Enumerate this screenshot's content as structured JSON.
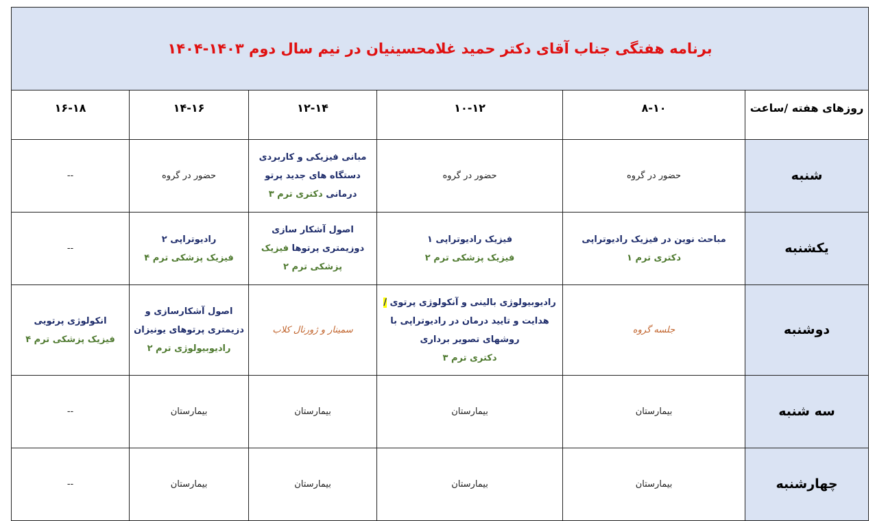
{
  "title": "برنامه هفتگی جناب آقای دکتر حمید غلامحسینیان در نیم سال دوم ۱۴۰۳-۱۴۰۴",
  "colors": {
    "title": "#e01010",
    "navy": "#1f2d6b",
    "green": "#4f7a30",
    "orange": "#c0622a",
    "plain": "#222222",
    "header_bg": "#dae3f3"
  },
  "header": [
    "روزهای هفته /ساعت",
    "۸-۱۰",
    "۱۰-۱۲",
    "۱۲-۱۴",
    "۱۴-۱۶",
    "۱۶-۱۸"
  ],
  "rows": [
    {
      "day": "شنبه",
      "cells": [
        [
          [
            {
              "t": "حضور در گروه",
              "c": "plain"
            }
          ]
        ],
        [
          [
            {
              "t": "حضور در گروه",
              "c": "plain"
            }
          ]
        ],
        [
          [
            {
              "t": "مبانی فیزیکی و کاربردی",
              "c": "navy",
              "b": 1
            }
          ],
          [
            {
              "t": "دستگاه های جدید پرتو",
              "c": "navy",
              "b": 1
            }
          ],
          [
            {
              "t": "درمانی ",
              "c": "navy",
              "b": 1
            },
            {
              "t": "دکتری ترم ۳",
              "c": "green",
              "b": 1
            }
          ]
        ],
        [
          [
            {
              "t": "حضور در گروه",
              "c": "plain"
            }
          ]
        ],
        [
          [
            {
              "t": "--",
              "c": "plain"
            }
          ]
        ]
      ]
    },
    {
      "day": "یکشنبه",
      "cells": [
        [
          [
            {
              "t": "مباحث نوین در فیزیک رادیوتراپی",
              "c": "navy",
              "b": 1
            }
          ],
          [
            {
              "t": "دکتری ترم ۱",
              "c": "green",
              "b": 1
            }
          ]
        ],
        [
          [
            {
              "t": "فیزیک رادیوتراپی ۱",
              "c": "navy",
              "b": 1
            }
          ],
          [
            {
              "t": "فیزیک پزشکی ترم ۲",
              "c": "green",
              "b": 1
            }
          ]
        ],
        [
          [
            {
              "t": "اصول آشکار سازی",
              "c": "navy",
              "b": 1
            }
          ],
          [
            {
              "t": "دوزیمتری پرتوها ",
              "c": "navy",
              "b": 1
            },
            {
              "t": "فیزیک",
              "c": "green",
              "b": 1
            }
          ],
          [
            {
              "t": "پزشکی ترم ۲",
              "c": "green",
              "b": 1
            }
          ]
        ],
        [
          [
            {
              "t": "رادیوتراپی ۲",
              "c": "navy",
              "b": 1
            }
          ],
          [
            {
              "t": "فیزیک پزشکی ترم ۴",
              "c": "green",
              "b": 1
            }
          ]
        ],
        [
          [
            {
              "t": "--",
              "c": "plain"
            }
          ]
        ]
      ]
    },
    {
      "day": "دوشنبه",
      "cells": [
        [
          [
            {
              "t": "جلسه گروه",
              "c": "orange",
              "i": 1
            }
          ]
        ],
        [
          [
            {
              "t": "رادیوبیولوژی بالینی و آنکولوژی پرتوی ",
              "c": "navy",
              "b": 1
            },
            {
              "t": "/",
              "c": "navy",
              "b": 1,
              "hl": 1
            }
          ],
          [
            {
              "t": "هدایت و تایید درمان در رادیوتراپی با",
              "c": "navy",
              "b": 1
            }
          ],
          [
            {
              "t": "روشهای تصویر برداری",
              "c": "navy",
              "b": 1
            }
          ],
          [
            {
              "t": "دکتری ترم ۳",
              "c": "green",
              "b": 1
            }
          ]
        ],
        [
          [
            {
              "t": "سمینار و ژورنال کلاب",
              "c": "orange",
              "i": 1
            }
          ]
        ],
        [
          [
            {
              "t": "اصول آشکارسازی و",
              "c": "navy",
              "b": 1
            }
          ],
          [
            {
              "t": "دزیمتری پرتوهای یونیزان",
              "c": "navy",
              "b": 1
            }
          ],
          [
            {
              "t": "رادیوبیولوژی ترم ۲",
              "c": "green",
              "b": 1
            }
          ]
        ],
        [
          [
            {
              "t": "انکولوژی پرتویی",
              "c": "navy",
              "b": 1
            }
          ],
          [
            {
              "t": "فیزیک پزشکی ترم ۴",
              "c": "green",
              "b": 1
            }
          ]
        ]
      ]
    },
    {
      "day": "سه شنبه",
      "cells": [
        [
          [
            {
              "t": "بیمارستان",
              "c": "plain"
            }
          ]
        ],
        [
          [
            {
              "t": "بیمارستان",
              "c": "plain"
            }
          ]
        ],
        [
          [
            {
              "t": "بیمارستان",
              "c": "plain"
            }
          ]
        ],
        [
          [
            {
              "t": "بیمارستان",
              "c": "plain"
            }
          ]
        ],
        [
          [
            {
              "t": "--",
              "c": "plain"
            }
          ]
        ]
      ]
    },
    {
      "day": "چهارشنبه",
      "cells": [
        [
          [
            {
              "t": "بیمارستان",
              "c": "plain"
            }
          ]
        ],
        [
          [
            {
              "t": "بیمارستان",
              "c": "plain"
            }
          ]
        ],
        [
          [
            {
              "t": "بیمارستان",
              "c": "plain"
            }
          ]
        ],
        [
          [
            {
              "t": "بیمارستان",
              "c": "plain"
            }
          ]
        ],
        [
          [
            {
              "t": "--",
              "c": "plain"
            }
          ]
        ]
      ]
    }
  ]
}
